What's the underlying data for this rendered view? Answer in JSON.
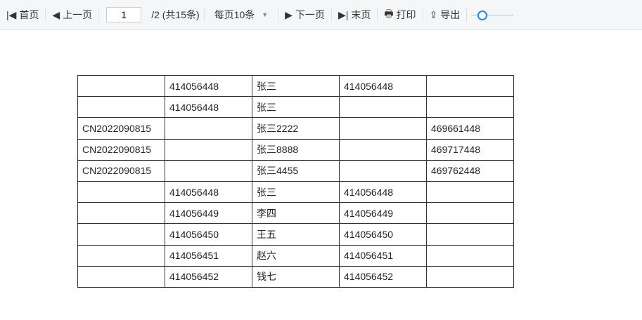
{
  "toolbar": {
    "first": "首页",
    "prev": "上一页",
    "page": "1",
    "total": "/2  (共15条)",
    "page_size": "每页10条",
    "next": "下一页",
    "last": "末页",
    "print": "打印",
    "export": "导出",
    "zoom_level": 0.15
  },
  "rows": [
    [
      "",
      "414056448",
      "张三",
      "414056448",
      ""
    ],
    [
      "",
      "414056448",
      "张三",
      "",
      ""
    ],
    [
      "CN2022090815",
      "",
      "张三2222",
      "",
      "469661448"
    ],
    [
      "CN2022090815",
      "",
      "张三8888",
      "",
      "469717448"
    ],
    [
      "CN2022090815",
      "",
      "张三4455",
      "",
      "469762448"
    ],
    [
      "",
      "414056448",
      "张三",
      "414056448",
      ""
    ],
    [
      "",
      "414056449",
      "李四",
      "414056449",
      ""
    ],
    [
      "",
      "414056450",
      "王五",
      "414056450",
      ""
    ],
    [
      "",
      "414056451",
      "赵六",
      "414056451",
      ""
    ],
    [
      "",
      "414056452",
      "钱七",
      "414056452",
      ""
    ]
  ]
}
